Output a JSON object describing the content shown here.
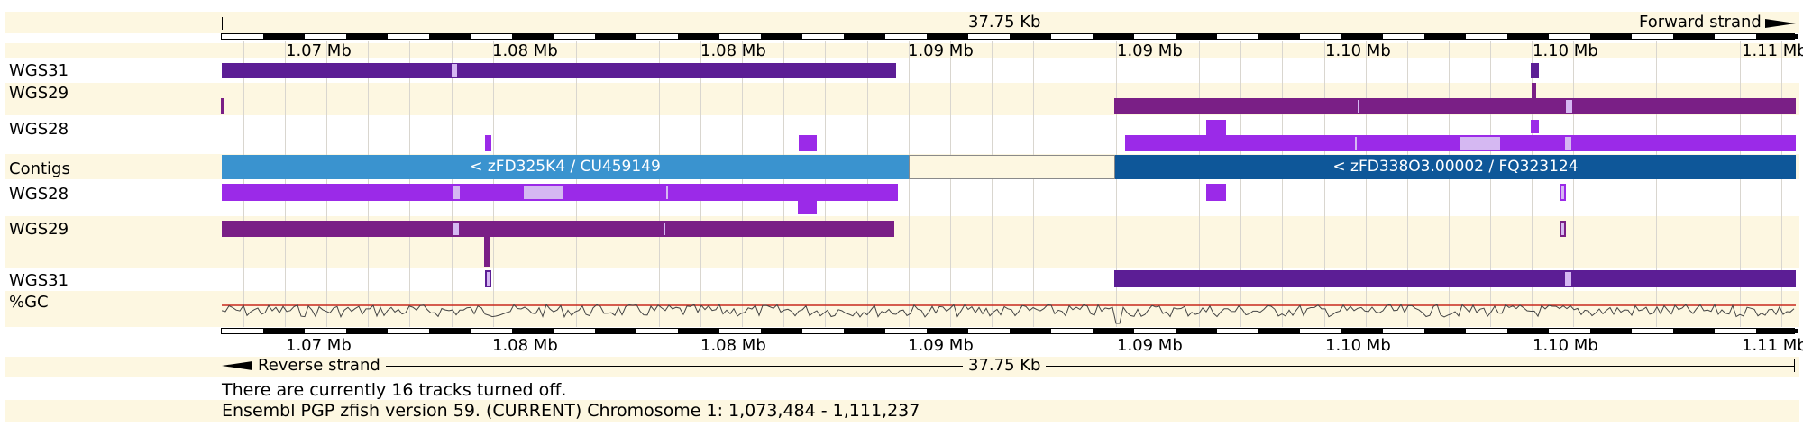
{
  "scale": {
    "length_label": "37.75 Kb",
    "forward_strand": "Forward strand",
    "reverse_strand": "Reverse strand",
    "mb_ticks": [
      "1.07 Mb",
      "1.08 Mb",
      "1.08 Mb",
      "1.09 Mb",
      "1.09 Mb",
      "1.10 Mb",
      "1.10 Mb",
      "1.11 Mb"
    ]
  },
  "tracks": {
    "wgs31_top": "WGS31",
    "wgs29_top": "WGS29",
    "wgs28_top": "WGS28",
    "contigs": "Contigs",
    "wgs28_bottom": "WGS28",
    "wgs29_bottom": "WGS29",
    "wgs31_bottom": "WGS31",
    "gc": "%GC"
  },
  "contigs": {
    "left": "< zFD325K4 / CU459149",
    "right": "< zFD338O3.00002 / FQ323124"
  },
  "footer": {
    "tracks_off": "There are currently 16 tracks turned off.",
    "version": "Ensembl PGP zfish version 59. (CURRENT) Chromosome 1: 1,073,484 - 1,111,237"
  },
  "colors": {
    "band": "#fdf7e1",
    "wgs31": "#5c1e95",
    "wgs29": "#7a1f86",
    "wgs28": "#9b2ae8",
    "contig_light": "#3a93cf",
    "contig_dark": "#0e5799",
    "gc_reference": "#c8281e"
  }
}
